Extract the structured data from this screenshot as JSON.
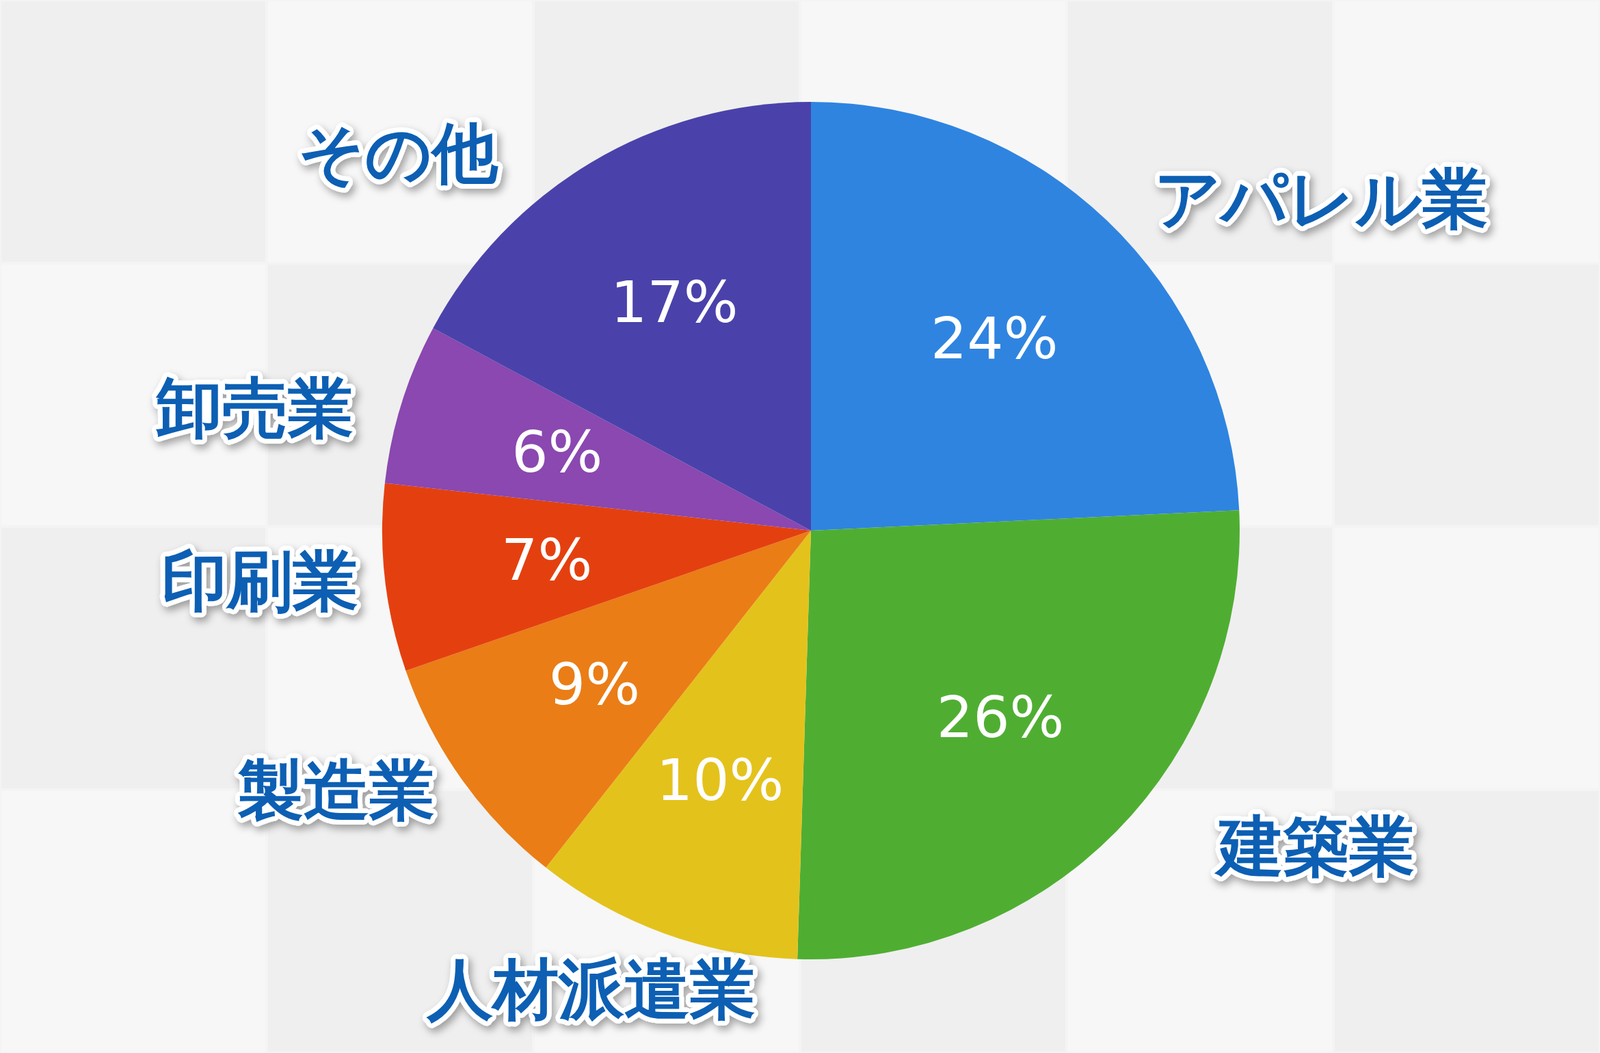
{
  "chart_data": {
    "type": "pie",
    "categories": [
      "アパレル業",
      "建築業",
      "人材派遣業",
      "製造業",
      "印刷業",
      "卸売業",
      "その他"
    ],
    "values": [
      24,
      26,
      10,
      9,
      7,
      6,
      17
    ],
    "value_labels": [
      "24%",
      "26%",
      "10%",
      "9%",
      "7%",
      "6%",
      "17%"
    ],
    "colors": [
      "#2f84e0",
      "#4fae32",
      "#e4c21c",
      "#ea7d16",
      "#e4400f",
      "#8a48b0",
      "#4a42aa"
    ],
    "data_labels": true
  }
}
